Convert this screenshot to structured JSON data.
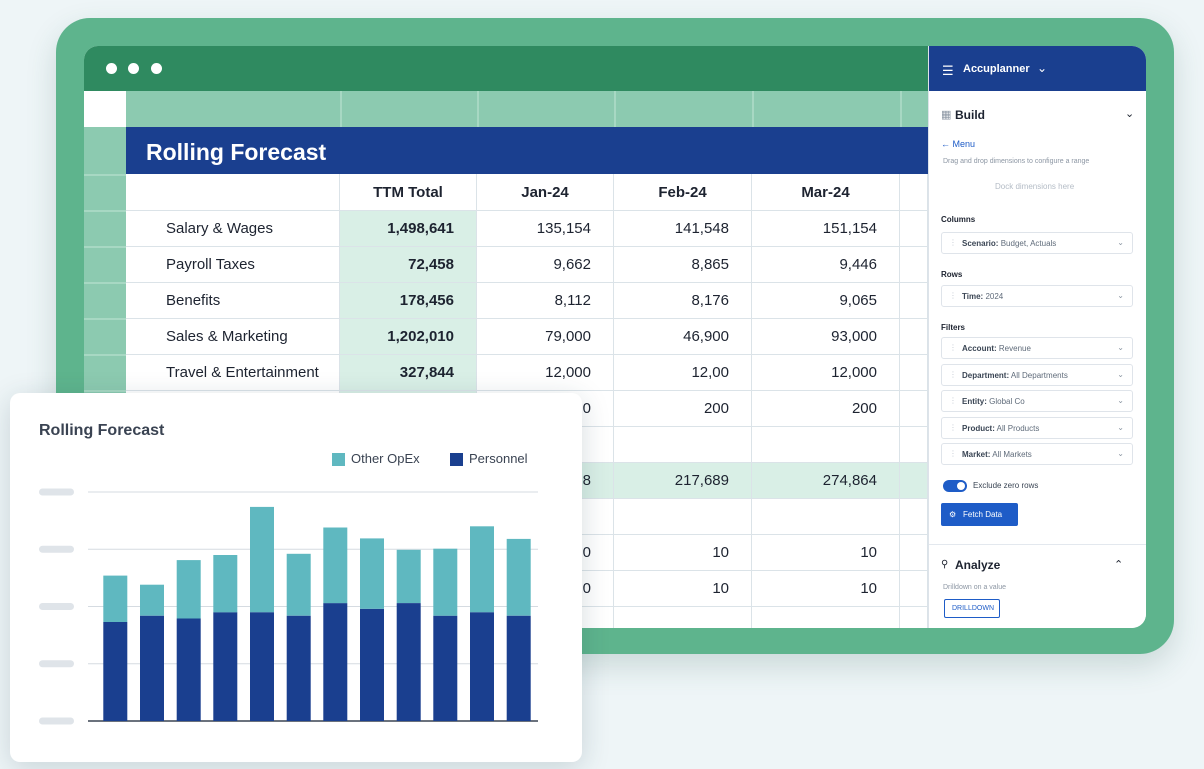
{
  "spreadsheet": {
    "title": "Rolling Forecast",
    "columns": [
      "",
      "TTM Total",
      "Jan-24",
      "Feb-24",
      "Mar-24"
    ],
    "rows": [
      {
        "label": "Salary & Wages",
        "ttm": "1,498,641",
        "jan": "135,154",
        "feb": "141,548",
        "mar": "151,154"
      },
      {
        "label": "Payroll Taxes",
        "ttm": "72,458",
        "jan": "9,662",
        "feb": "8,865",
        "mar": "9,446"
      },
      {
        "label": "Benefits",
        "ttm": "178,456",
        "jan": "8,112",
        "feb": "8,176",
        "mar": "9,065"
      },
      {
        "label": "Sales & Marketing",
        "ttm": "1,202,010",
        "jan": "79,000",
        "feb": "46,900",
        "mar": "93,000"
      },
      {
        "label": "Travel & Entertainment",
        "ttm": "327,844",
        "jan": "12,000",
        "feb": "12,00",
        "mar": "12,000"
      },
      {
        "label": "",
        "ttm": "",
        "jan": "200",
        "feb": "200",
        "mar": "200"
      },
      {
        "label": "",
        "ttm": "",
        "jan": "",
        "feb": "",
        "mar": ""
      },
      {
        "label": "",
        "ttm": "",
        "jan": "128",
        "feb": "217,689",
        "mar": "274,864"
      },
      {
        "label": "",
        "ttm": "",
        "jan": "",
        "feb": "",
        "mar": ""
      },
      {
        "label": "",
        "ttm": "",
        "jan": "10",
        "feb": "10",
        "mar": "10"
      },
      {
        "label": "",
        "ttm": "",
        "jan": "10",
        "feb": "10",
        "mar": "10"
      },
      {
        "label": "",
        "ttm": "",
        "jan": "",
        "feb": "",
        "mar": ""
      }
    ]
  },
  "panel": {
    "brand": "Accuplanner",
    "build_title": "Build",
    "menu_link": "← Menu",
    "hint": "Drag and drop dimensions to configure a range",
    "dock_placeholder": "Dock dimensions here",
    "columns_label": "Columns",
    "columns_field": {
      "key": "Scenario:",
      "value": "Budget, Actuals"
    },
    "rows_label": "Rows",
    "rows_field": {
      "key": "Time:",
      "value": "2024"
    },
    "filters_label": "Filters",
    "filters": [
      {
        "key": "Account:",
        "value": "Revenue"
      },
      {
        "key": "Department:",
        "value": "All Departments"
      },
      {
        "key": "Entity:",
        "value": "Global Co"
      },
      {
        "key": "Product:",
        "value": "All Products"
      },
      {
        "key": "Market:",
        "value": "All Markets"
      }
    ],
    "exclude_zero": "Exclude zero rows",
    "exclude_zero_on": true,
    "fetch_button": "Fetch Data",
    "analyze_title": "Analyze",
    "drilldown_hint": "Drilldown on a value",
    "drilldown_button": "DRILLDOWN"
  },
  "chart_data": {
    "type": "bar",
    "stacked": true,
    "title": "Rolling Forecast",
    "legend_position": "top-right",
    "grid": true,
    "ylim": [
      0,
      4
    ],
    "categories": [
      "",
      "",
      "",
      "",
      "",
      "",
      "",
      "",
      "",
      "",
      "",
      ""
    ],
    "series": [
      {
        "name": "Personnel",
        "color": "#1a3f8f",
        "values": [
          1.73,
          1.84,
          1.79,
          1.9,
          1.9,
          1.84,
          2.06,
          1.96,
          2.06,
          1.84,
          1.9,
          1.84
        ]
      },
      {
        "name": "Other OpEx",
        "color": "#5fb8c0",
        "values": [
          0.81,
          0.54,
          1.02,
          1.0,
          1.84,
          1.08,
          1.32,
          1.23,
          0.93,
          1.17,
          1.5,
          1.34
        ]
      }
    ]
  }
}
